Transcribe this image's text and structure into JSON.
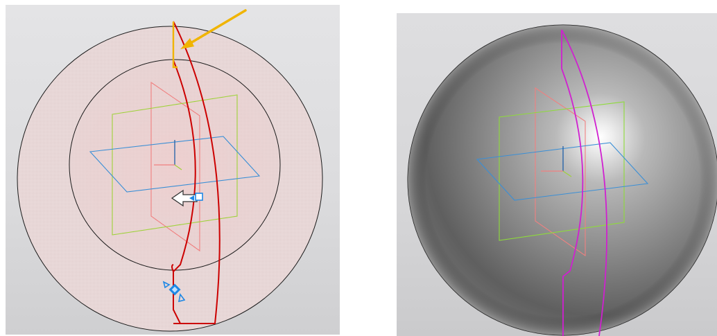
{
  "left_viewport": {
    "mode": "wireframe-translucent",
    "background": "#dcdcde",
    "sphere_fill": "#eadcdc",
    "outline_color": "#1a1a1a",
    "sketch_color": "#cc0000",
    "selected_edge_color": "#f0b400",
    "arrow_color": "#f0b400",
    "handle_color": "#1e88e5"
  },
  "right_viewport": {
    "mode": "shaded",
    "background": "#d6d6d8",
    "sphere_color": "#7a7a7a",
    "highlight_color": "#ffffff",
    "sketch_color": "#d020d0"
  },
  "planes": {
    "xy_color": "#3a8fd6",
    "front_color": "#9fd23a",
    "side_color": "#f08080"
  },
  "icons": [
    "selection-arrow-icon",
    "direction-arrow-icon",
    "drag-handle-icon",
    "view-cursor-icon"
  ]
}
